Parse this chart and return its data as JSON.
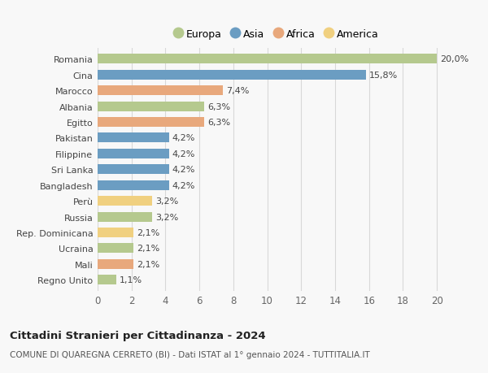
{
  "countries": [
    "Romania",
    "Cina",
    "Marocco",
    "Albania",
    "Egitto",
    "Pakistan",
    "Filippine",
    "Sri Lanka",
    "Bangladesh",
    "Perù",
    "Russia",
    "Rep. Dominicana",
    "Ucraina",
    "Mali",
    "Regno Unito"
  ],
  "values": [
    20.0,
    15.8,
    7.4,
    6.3,
    6.3,
    4.2,
    4.2,
    4.2,
    4.2,
    3.2,
    3.2,
    2.1,
    2.1,
    2.1,
    1.1
  ],
  "labels": [
    "20,0%",
    "15,8%",
    "7,4%",
    "6,3%",
    "6,3%",
    "4,2%",
    "4,2%",
    "4,2%",
    "4,2%",
    "3,2%",
    "3,2%",
    "2,1%",
    "2,1%",
    "2,1%",
    "1,1%"
  ],
  "colors": [
    "#b5c98e",
    "#6b9dc2",
    "#e8a87c",
    "#b5c98e",
    "#e8a87c",
    "#6b9dc2",
    "#6b9dc2",
    "#6b9dc2",
    "#6b9dc2",
    "#f0d080",
    "#b5c98e",
    "#f0d080",
    "#b5c98e",
    "#e8a87c",
    "#b5c98e"
  ],
  "legend_labels": [
    "Europa",
    "Asia",
    "Africa",
    "America"
  ],
  "legend_colors": [
    "#b5c98e",
    "#6b9dc2",
    "#e8a87c",
    "#f0d080"
  ],
  "xlim": [
    0,
    21
  ],
  "xticks": [
    0,
    2,
    4,
    6,
    8,
    10,
    12,
    14,
    16,
    18,
    20
  ],
  "title": "Cittadini Stranieri per Cittadinanza - 2024",
  "subtitle": "COMUNE DI QUAREGNA CERRETO (BI) - Dati ISTAT al 1° gennaio 2024 - TUTTITALIA.IT",
  "bg_color": "#f8f8f8",
  "grid_color": "#d8d8d8",
  "bar_height": 0.62,
  "label_fontsize": 8,
  "ytick_fontsize": 8,
  "xtick_fontsize": 8.5,
  "legend_fontsize": 9,
  "title_fontsize": 9.5,
  "subtitle_fontsize": 7.5
}
